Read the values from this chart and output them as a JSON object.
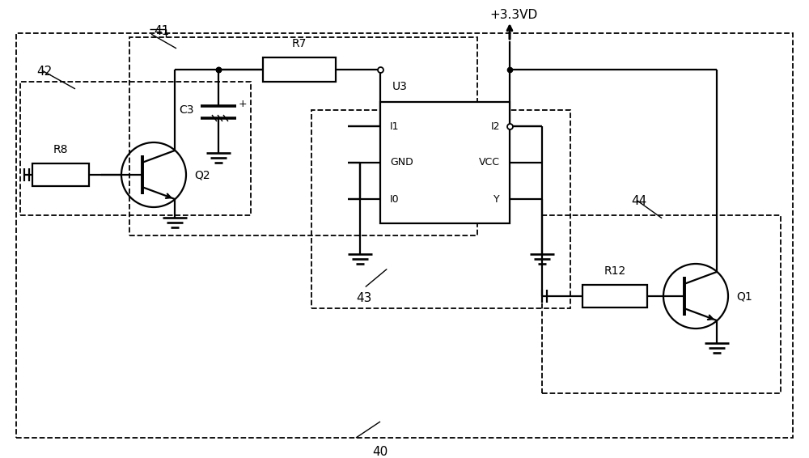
{
  "bg": "#ffffff",
  "k": "#000000",
  "vcc": "+3.3VD",
  "u3": "U3",
  "r7": "R7",
  "r8": "R8",
  "r12": "R12",
  "c3": "C3",
  "q1": "Q1",
  "q2": "Q2",
  "n40": "40",
  "n41": "41",
  "n42": "42",
  "n43": "43",
  "n44": "44",
  "u3_pins_left": [
    "I1",
    "GND",
    "I0"
  ],
  "u3_pins_right": [
    "I2",
    "VCC",
    "Y"
  ]
}
